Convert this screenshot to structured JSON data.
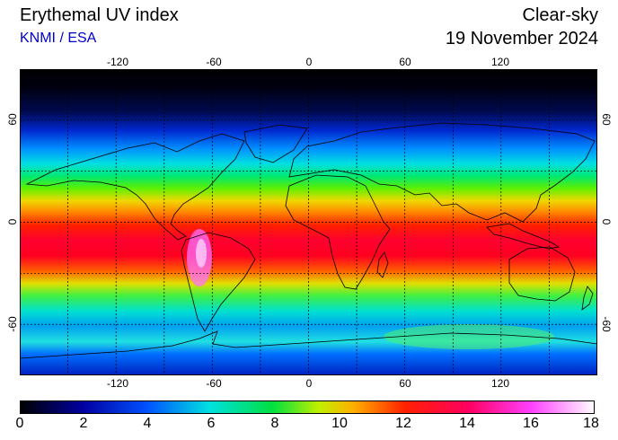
{
  "header": {
    "title": "Erythemal UV index",
    "credit": "KNMI / ESA",
    "product": "Clear-sky",
    "date": "19 November 2024"
  },
  "map": {
    "lon_ticks": [
      "-120",
      "-60",
      "0",
      "60",
      "120"
    ],
    "lat_ticks_left": [
      "60",
      "0",
      "-60"
    ],
    "lat_ticks_right": [
      "60",
      "0",
      "-60"
    ],
    "lon_values": [
      -120,
      -60,
      0,
      60,
      120
    ],
    "lat_values": [
      60,
      0,
      -60
    ],
    "grid_lon_lines": [
      -150,
      -120,
      -90,
      -60,
      -30,
      0,
      30,
      60,
      90,
      120,
      150
    ],
    "grid_lat_lines": [
      -60,
      -30,
      0,
      30,
      60
    ],
    "extent": {
      "lon": [
        -180,
        180
      ],
      "lat": [
        -90,
        90
      ]
    },
    "grid": "dashed"
  },
  "colorbar": {
    "min": 0,
    "max": 18,
    "tick_labels": [
      "0",
      "2",
      "4",
      "6",
      "8",
      "10",
      "12",
      "14",
      "16",
      "18"
    ],
    "tick_values": [
      0,
      2,
      4,
      6,
      8,
      10,
      12,
      14,
      16,
      18
    ]
  }
}
